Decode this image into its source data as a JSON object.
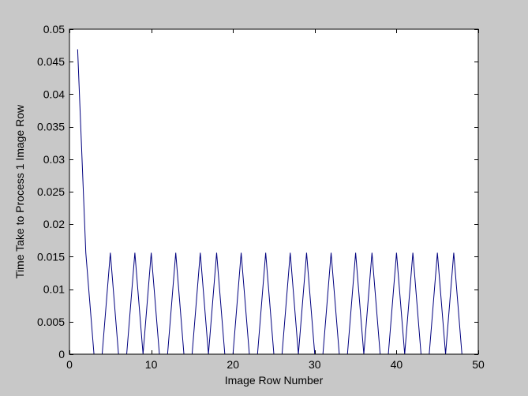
{
  "chart_data": {
    "type": "line",
    "title": "",
    "xlabel": "Image Row Number",
    "ylabel": "Time Take to Process 1 Image Row",
    "xlim": [
      0,
      50
    ],
    "ylim": [
      0,
      0.05
    ],
    "xticks": [
      0,
      10,
      20,
      30,
      40,
      50
    ],
    "xtick_labels": [
      "0",
      "10",
      "20",
      "30",
      "40",
      "50"
    ],
    "yticks": [
      0,
      0.005,
      0.01,
      0.015,
      0.02,
      0.025,
      0.03,
      0.035,
      0.04,
      0.045,
      0.05
    ],
    "ytick_labels": [
      "0",
      "0.005",
      "0.01",
      "0.015",
      "0.02",
      "0.025",
      "0.03",
      "0.035",
      "0.04",
      "0.045",
      "0.05"
    ],
    "grid": false,
    "legend": "none",
    "series": [
      {
        "color": "#00007f",
        "x": [
          1,
          2,
          3,
          4,
          5,
          6,
          7,
          8,
          9,
          10,
          11,
          12,
          13,
          14,
          15,
          16,
          17,
          18,
          19,
          20,
          21,
          22,
          23,
          24,
          25,
          26,
          27,
          28,
          29,
          30,
          31,
          32,
          33,
          34,
          35,
          36,
          37,
          38,
          39,
          40,
          41,
          42,
          43,
          44,
          45,
          46,
          47,
          48
        ],
        "y": [
          0.0469,
          0.0156,
          0,
          0,
          0.0156,
          0,
          0,
          0.0156,
          0,
          0.0156,
          0,
          0,
          0.0156,
          0,
          0,
          0.0156,
          0,
          0.0156,
          0,
          0,
          0.0156,
          0,
          0,
          0.0156,
          0,
          0,
          0.0156,
          0,
          0.0156,
          0,
          0,
          0.0156,
          0,
          0,
          0.0156,
          0,
          0.0156,
          0,
          0,
          0.0156,
          0,
          0.0156,
          0,
          0,
          0.0156,
          0,
          0.0156,
          0
        ]
      }
    ]
  }
}
